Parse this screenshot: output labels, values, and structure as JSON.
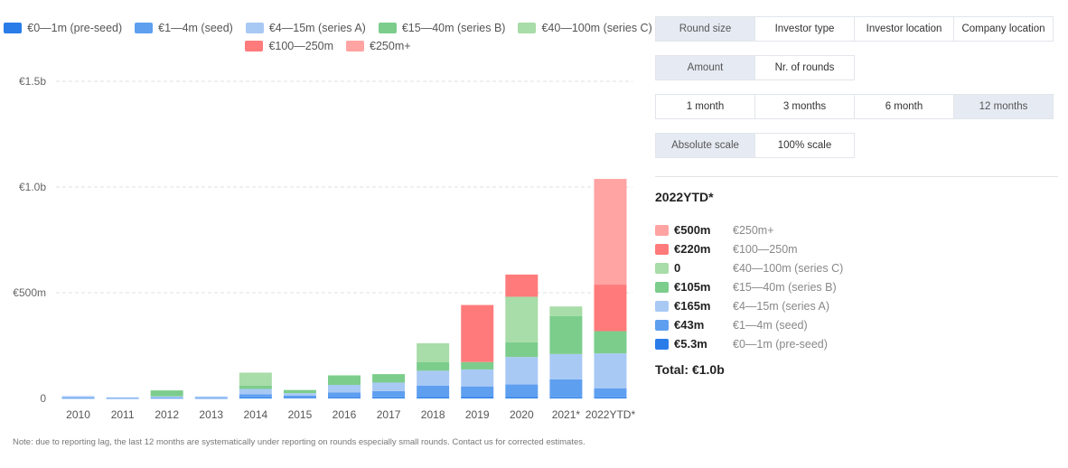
{
  "chart_data": {
    "type": "bar",
    "stacked": true,
    "categories": [
      "2010",
      "2011",
      "2012",
      "2013",
      "2014",
      "2015",
      "2016",
      "2017",
      "2018",
      "2019",
      "2020",
      "2021*",
      "2022YTD*"
    ],
    "y_tick_labels": [
      "0",
      "€500m",
      "€1.0b",
      "€1.5b"
    ],
    "y_tick_values": [
      0,
      500,
      1000,
      1500
    ],
    "ylim": [
      0,
      1500
    ],
    "grid": true,
    "legend_position": "top",
    "series": [
      {
        "name": "€0—1m (pre-seed)",
        "color": "#2a7de8",
        "values": [
          1,
          0.5,
          1,
          0.5,
          5,
          3,
          4,
          5,
          6,
          7,
          6,
          5,
          5.3
        ]
      },
      {
        "name": "€1—4m (seed)",
        "color": "#5e9ff0",
        "values": [
          4,
          2,
          3,
          3,
          15,
          10,
          25,
          30,
          55,
          50,
          60,
          85,
          43
        ]
      },
      {
        "name": "€4—15m (series A)",
        "color": "#a9c9f5",
        "values": [
          6,
          3,
          6,
          6,
          25,
          12,
          35,
          40,
          70,
          80,
          130,
          120,
          165
        ]
      },
      {
        "name": "€15—40m (series B)",
        "color": "#7ccd8c",
        "values": [
          0,
          0,
          28,
          0,
          15,
          15,
          45,
          40,
          40,
          35,
          70,
          180,
          105
        ]
      },
      {
        "name": "€40—100m (series C)",
        "color": "#a8dca8",
        "values": [
          0,
          0,
          0,
          0,
          62,
          0,
          0,
          0,
          90,
          0,
          215,
          45,
          0
        ]
      },
      {
        "name": "€100—250m",
        "color": "#ff7b7b",
        "values": [
          0,
          0,
          0,
          0,
          0,
          0,
          0,
          0,
          0,
          270,
          105,
          0,
          220
        ]
      },
      {
        "name": "€250m+",
        "color": "#ffa3a3",
        "values": [
          0,
          0,
          0,
          0,
          0,
          0,
          0,
          0,
          0,
          0,
          0,
          0,
          500
        ]
      }
    ]
  },
  "controls": {
    "row1": [
      {
        "label": "Round size",
        "active": true
      },
      {
        "label": "Investor type",
        "active": false
      },
      {
        "label": "Investor location",
        "active": false
      },
      {
        "label": "Company location",
        "active": false
      }
    ],
    "row2": [
      {
        "label": "Amount",
        "active": true
      },
      {
        "label": "Nr. of rounds",
        "active": false
      }
    ],
    "row3": [
      {
        "label": "1 month",
        "active": false
      },
      {
        "label": "3 months",
        "active": false
      },
      {
        "label": "6 month",
        "active": false
      },
      {
        "label": "12 months",
        "active": true
      }
    ],
    "row4": [
      {
        "label": "Absolute scale",
        "active": true
      },
      {
        "label": "100% scale",
        "active": false
      }
    ]
  },
  "summary": {
    "year": "2022YTD*",
    "rows": [
      {
        "value": "€500m",
        "label": "€250m+",
        "color": "#ffa3a3"
      },
      {
        "value": "€220m",
        "label": "€100—250m",
        "color": "#ff7b7b"
      },
      {
        "value": "0",
        "label": "€40—100m (series C)",
        "color": "#a8dca8"
      },
      {
        "value": "€105m",
        "label": "€15—40m (series B)",
        "color": "#7ccd8c"
      },
      {
        "value": "€165m",
        "label": "€4—15m (series A)",
        "color": "#a9c9f5"
      },
      {
        "value": "€43m",
        "label": "€1—4m (seed)",
        "color": "#5e9ff0"
      },
      {
        "value": "€5.3m",
        "label": "€0—1m (pre-seed)",
        "color": "#2a7de8"
      }
    ],
    "total": "Total: €1.0b"
  },
  "footnote": "Note: due to reporting lag, the last 12 months are systematically under reporting on rounds especially small rounds. Contact us for corrected estimates."
}
